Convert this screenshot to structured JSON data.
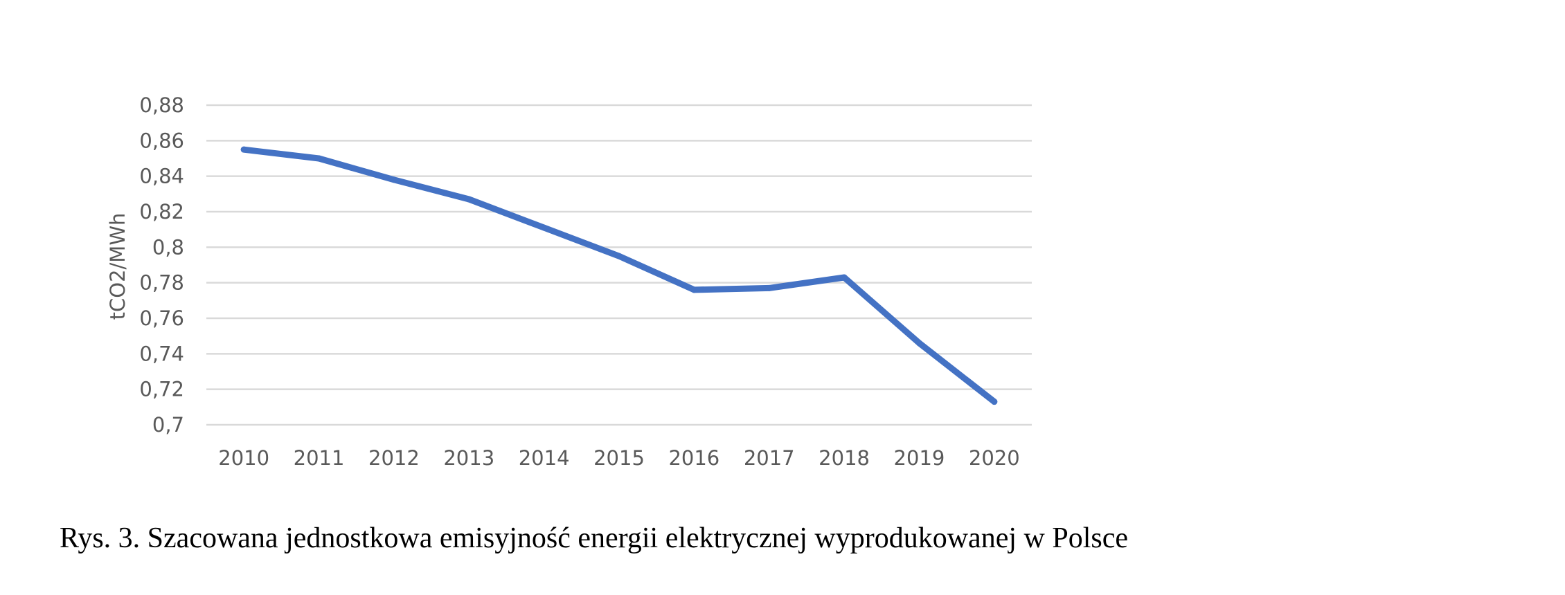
{
  "chart_data": {
    "type": "line",
    "ylabel": "tCO2/MWh",
    "x": [
      "2010",
      "2011",
      "2012",
      "2013",
      "2014",
      "2015",
      "2016",
      "2017",
      "2018",
      "2019",
      "2020"
    ],
    "series": [
      {
        "values": [
          0.855,
          0.85,
          0.838,
          0.827,
          0.811,
          0.795,
          0.776,
          0.777,
          0.783,
          0.746,
          0.713
        ]
      }
    ],
    "ylim": [
      0.7,
      0.88
    ],
    "yticks": [
      "0,88",
      "0,86",
      "0,84",
      "0,82",
      "0,8",
      "0,78",
      "0,76",
      "0,74",
      "0,72",
      "0,7"
    ],
    "grid": true,
    "line_color": "#4472C4",
    "grid_color": "#D9D9D9"
  },
  "caption": "Rys. 3. Szacowana jednostkowa emisyjność energii elektrycznej wyprodukowanej w Polsce"
}
